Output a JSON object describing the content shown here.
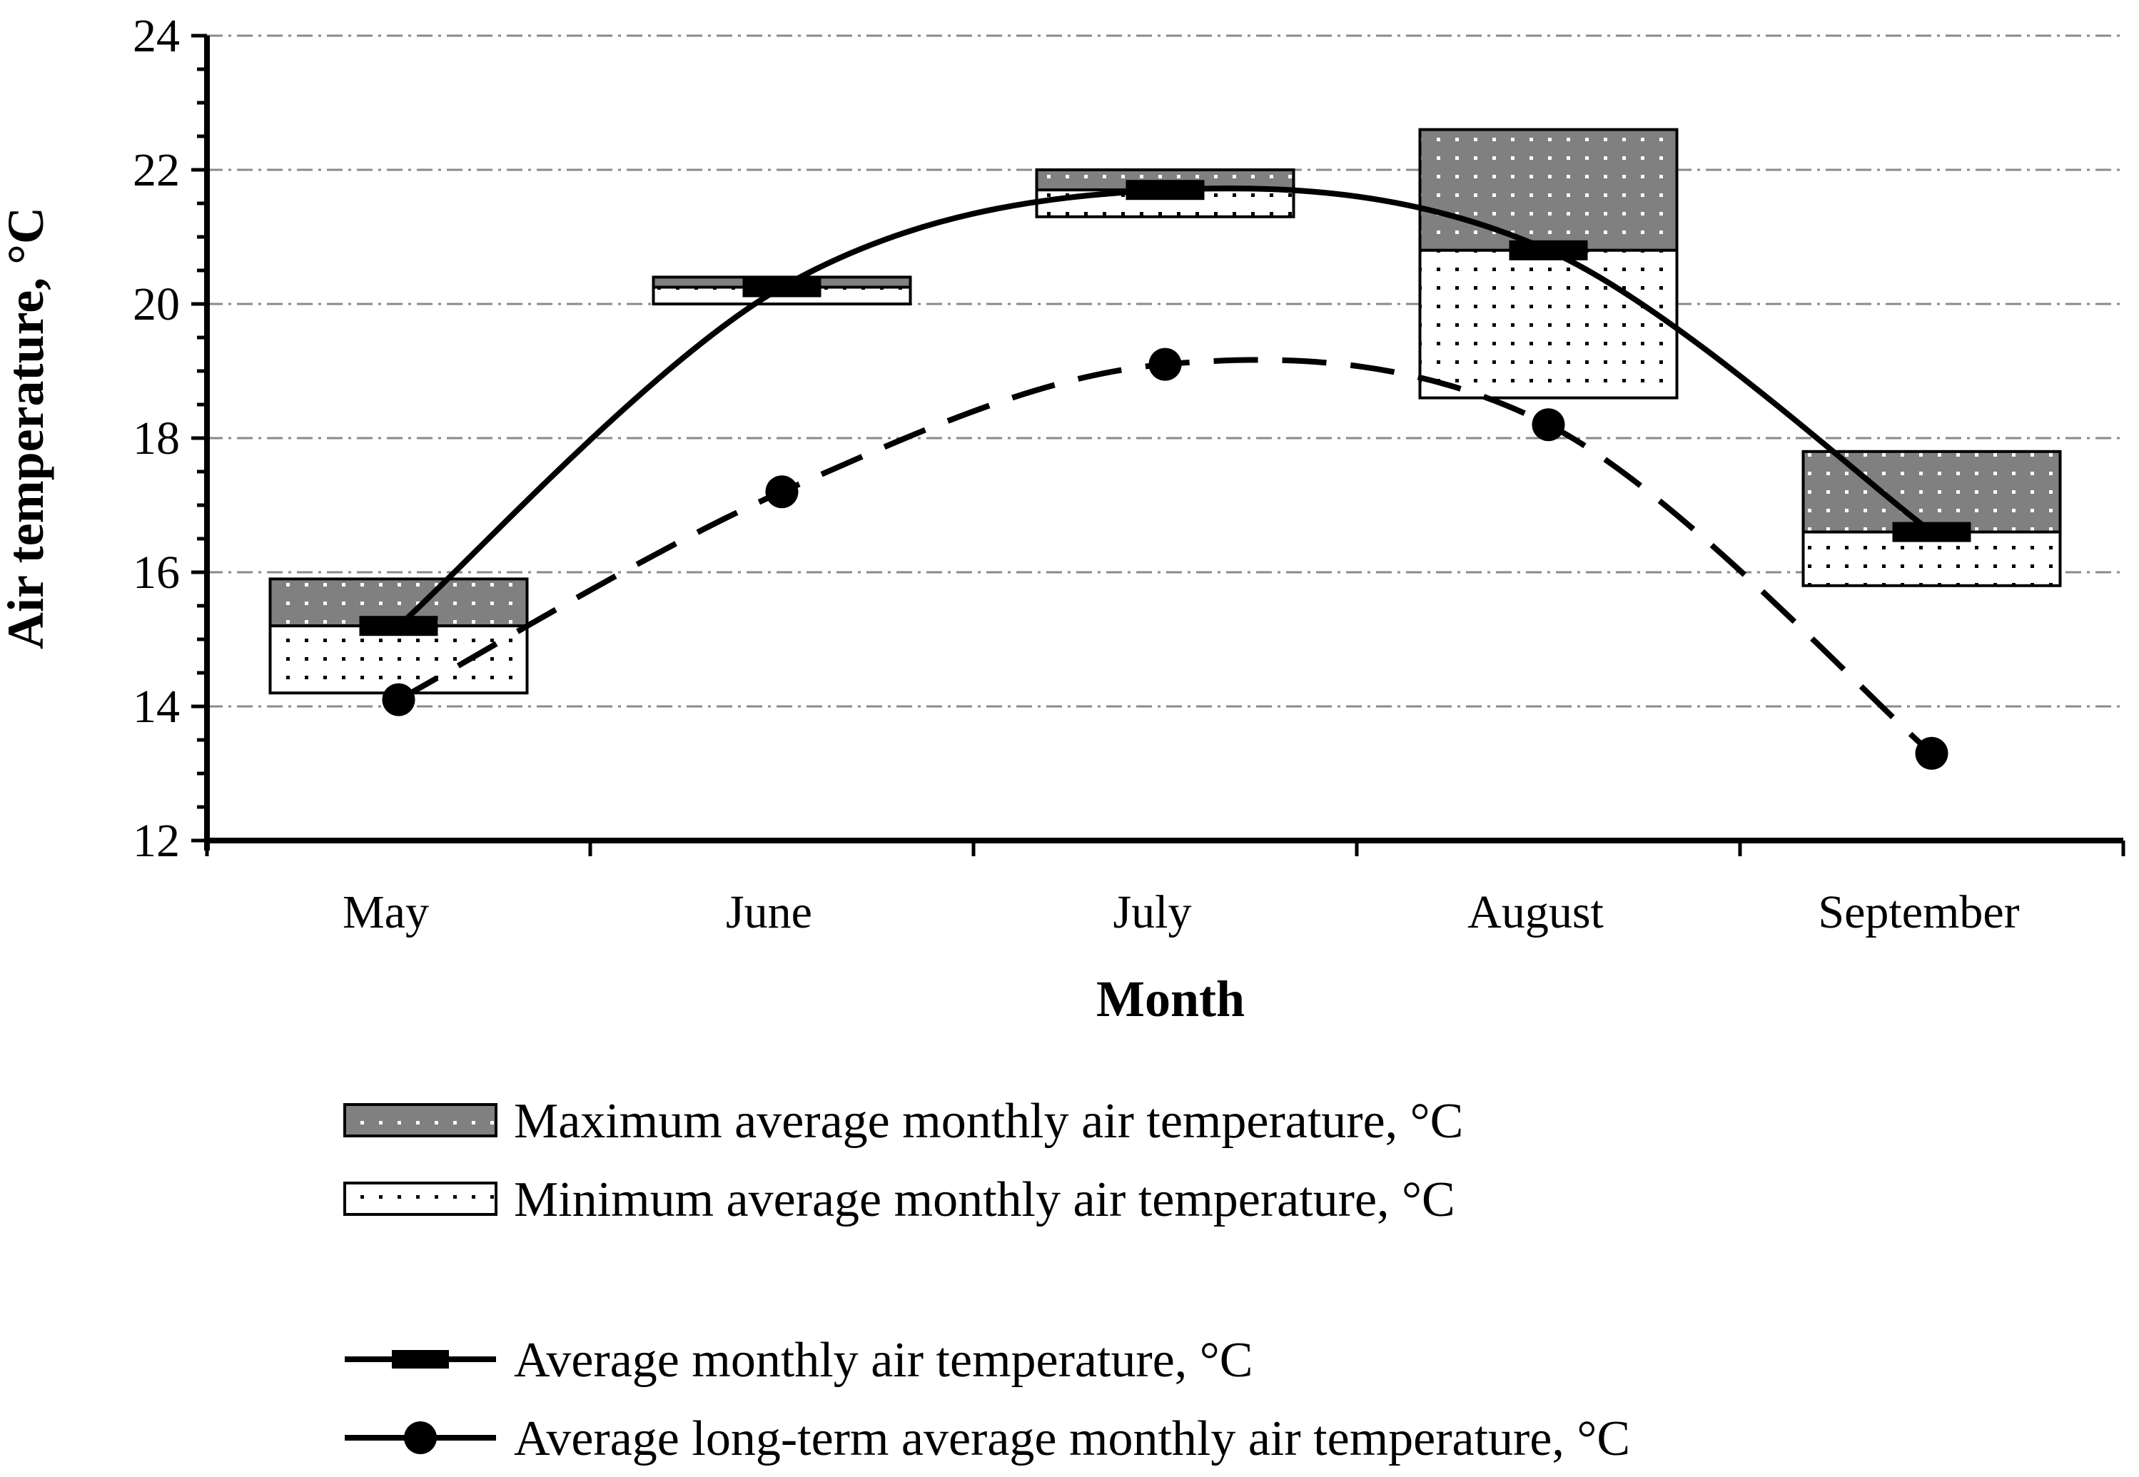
{
  "chart_data": {
    "type": "bar",
    "xlabel": "Month",
    "ylabel": "Air temperature, °C",
    "ylim": [
      12,
      24
    ],
    "yticks": [
      12,
      14,
      16,
      18,
      20,
      22,
      24
    ],
    "grid": true,
    "categories": [
      "May",
      "June",
      "July",
      "August",
      "September"
    ],
    "series": [
      {
        "name": "Maximum average monthly air temperature, °C",
        "kind": "floating-bar-upper",
        "fill": "#808080",
        "values": [
          15.9,
          20.4,
          22.0,
          22.6,
          17.8
        ]
      },
      {
        "name": "Minimum average monthly air temperature, °C",
        "kind": "floating-bar-lower",
        "fill": "#ffffff",
        "values": [
          14.2,
          20.0,
          21.3,
          18.6,
          15.8
        ]
      },
      {
        "name": "Average monthly air temperature, °C",
        "kind": "smooth-line-dash-marker",
        "values": [
          15.2,
          20.25,
          21.7,
          20.8,
          16.6
        ]
      },
      {
        "name": "Average long-term average monthly air temperature, °C",
        "kind": "dashed-smooth-line-circle-marker",
        "values": [
          14.1,
          17.2,
          19.1,
          18.2,
          13.3
        ]
      }
    ],
    "legend_position": "bottom"
  }
}
